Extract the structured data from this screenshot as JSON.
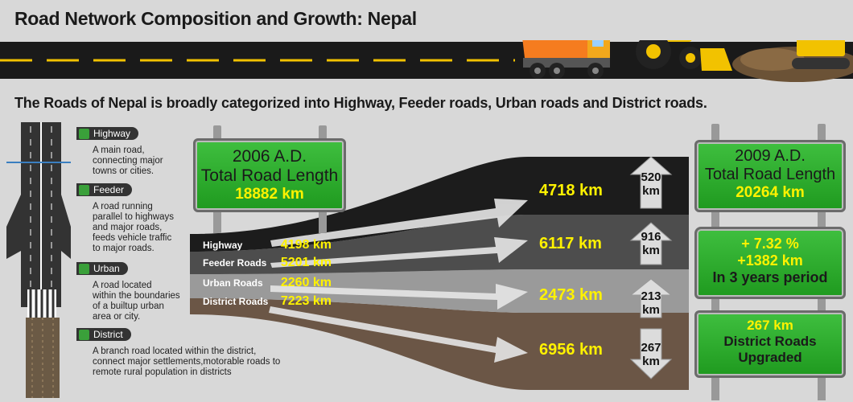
{
  "title": "Road Network Composition and Growth: Nepal",
  "subtitle": "The Roads of Nepal is broadly categorized into  Highway, Feeder roads, Urban roads and District roads.",
  "categories": [
    {
      "label": "Highway",
      "desc": [
        "A main road,",
        "connecting major",
        "towns or cities."
      ]
    },
    {
      "label": "Feeder",
      "desc": [
        "A road running",
        "parallel to highways",
        "and major roads,",
        "feeds vehicle traffic",
        "to major roads."
      ]
    },
    {
      "label": "Urban",
      "desc": [
        "A road located",
        "within the boundaries",
        "of a builtup urban",
        "area or city."
      ]
    },
    {
      "label": "District",
      "desc": [
        "A branch road located within the district,",
        "connect major settlements,motorable roads to",
        "remote rural population in districts"
      ]
    }
  ],
  "sign_2006": {
    "year": "2006 A.D.",
    "label": "Total Road Length",
    "value": "18882 km"
  },
  "sign_2009": {
    "year": "2009 A.D.",
    "label": "Total Road Length",
    "value": "20264 km"
  },
  "growth_sign": {
    "pct": "+ 7.32 %",
    "km": "+1382 km",
    "period": "In 3 years period"
  },
  "district_sign": {
    "km": "267 km",
    "line1": "District Roads",
    "line2": "Upgraded"
  },
  "bars_2006": [
    {
      "name": "Highway",
      "value": "4198 km"
    },
    {
      "name": "Feeder Roads",
      "value": "5201 km"
    },
    {
      "name": "Urban Roads",
      "value": "2260 km"
    },
    {
      "name": "District Roads",
      "value": "7223 km"
    }
  ],
  "values_2009": [
    "4718 km",
    "6117 km",
    "2473 km",
    "6956 km"
  ],
  "changes": [
    {
      "num": "520",
      "unit": "km",
      "dir": "up"
    },
    {
      "num": "916",
      "unit": "km",
      "dir": "up"
    },
    {
      "num": "213",
      "unit": "km",
      "dir": "up"
    },
    {
      "num": "267",
      "unit": "km",
      "dir": "down"
    }
  ],
  "colors": {
    "highway": "#1c1c1c",
    "feeder": "#4d4d4d",
    "urban": "#9a9a9a",
    "district": "#6b5646",
    "sign_green": "#2aa82a",
    "accent_yellow": "#fff200"
  }
}
